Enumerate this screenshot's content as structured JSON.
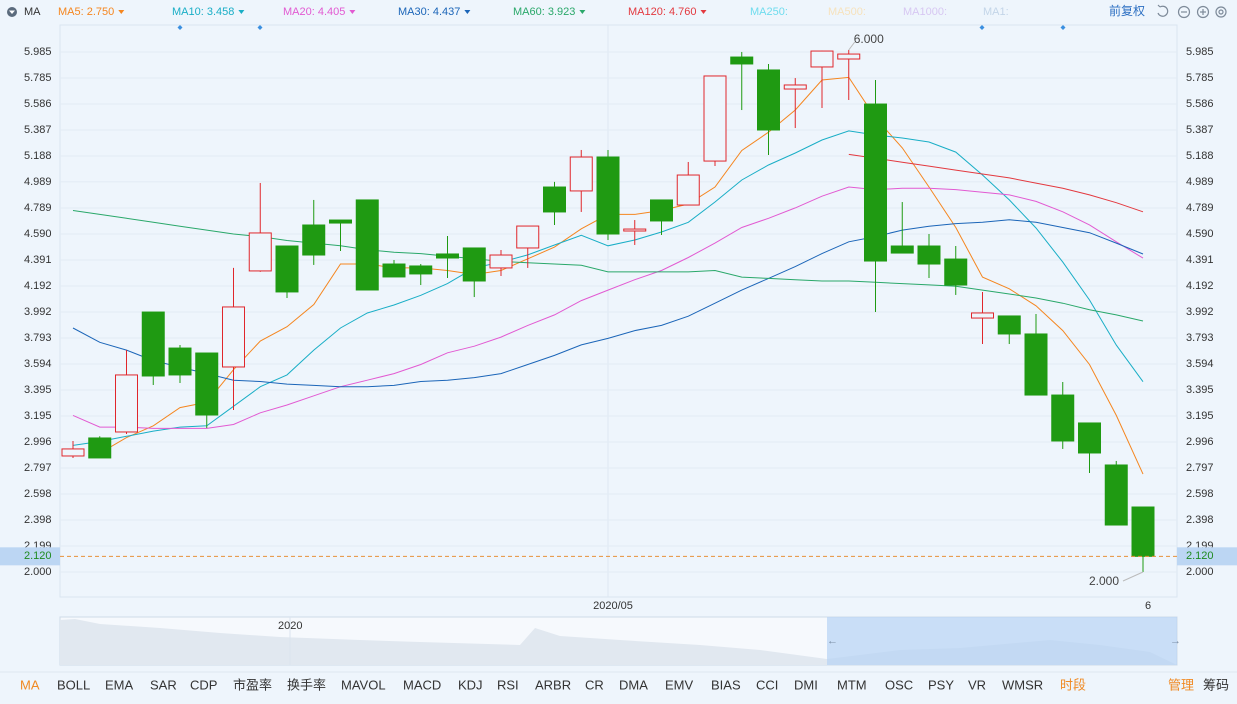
{
  "header": {
    "indicator": "MA",
    "adjust": "前复权"
  },
  "chart_data": {
    "type": "candlestick",
    "categories": [
      null,
      null,
      null,
      null,
      null,
      null,
      null,
      null,
      null,
      null,
      null,
      null,
      null,
      null,
      null,
      null,
      null,
      null,
      null,
      null,
      "2020/05",
      null,
      null,
      null,
      null,
      null,
      null,
      null,
      null,
      null,
      null,
      null,
      null,
      null,
      null,
      null,
      null,
      null,
      null,
      null,
      "6"
    ],
    "open": [
      2.889,
      3.027,
      3.073,
      3.992,
      3.716,
      3.678,
      3.571,
      4.307,
      4.498,
      4.659,
      4.697,
      4.851,
      4.36,
      4.345,
      4.437,
      4.483,
      4.33,
      4.483,
      4.95,
      4.92,
      5.18,
      4.613,
      4.851,
      4.812,
      5.149,
      5.946,
      5.847,
      5.701,
      5.87,
      5.931,
      5.586,
      4.498,
      4.498,
      4.398,
      3.946,
      3.962,
      3.824,
      3.356,
      3.142,
      2.82,
      2.498
    ],
    "high": [
      3.004,
      3.04,
      3.7,
      3.992,
      3.739,
      3.678,
      4.33,
      4.981,
      4.498,
      4.851,
      4.697,
      4.851,
      4.391,
      4.36,
      4.575,
      4.483,
      4.467,
      4.651,
      4.989,
      5.234,
      5.234,
      4.697,
      4.851,
      5.142,
      5.801,
      5.985,
      5.893,
      5.785,
      5.995,
      6.0,
      5.77,
      4.835,
      4.59,
      4.498,
      4.146,
      3.962,
      3.977,
      3.456,
      3.142,
      2.851,
      2.498
    ],
    "low": [
      2.874,
      2.874,
      3.057,
      3.433,
      3.448,
      3.103,
      3.241,
      4.3,
      4.1,
      4.353,
      4.46,
      4.161,
      4.261,
      4.199,
      4.253,
      4.107,
      4.268,
      4.33,
      4.659,
      4.759,
      4.544,
      4.506,
      4.582,
      4.812,
      5.111,
      5.54,
      5.195,
      5.402,
      5.556,
      5.617,
      3.992,
      4.444,
      4.253,
      4.123,
      3.747,
      3.747,
      3.356,
      2.943,
      2.759,
      2.36,
      2.0
    ],
    "close": [
      2.943,
      2.874,
      3.51,
      3.502,
      3.51,
      3.203,
      4.031,
      4.598,
      4.146,
      4.429,
      4.674,
      4.161,
      4.261,
      4.284,
      4.406,
      4.23,
      4.429,
      4.651,
      4.759,
      5.18,
      4.59,
      4.628,
      4.69,
      5.042,
      5.801,
      5.893,
      5.387,
      5.732,
      5.992,
      5.969,
      4.383,
      4.444,
      4.36,
      4.199,
      3.985,
      3.824,
      3.356,
      3.004,
      2.912,
      2.36,
      2.12
    ],
    "up_color": "#e0262b",
    "down_color": "#1f9a12",
    "series": [
      {
        "name": "MA5: 2.750",
        "color": "#f5861f",
        "values": [
          null,
          2.91,
          3.03,
          3.12,
          3.26,
          3.3,
          3.55,
          3.77,
          3.88,
          4.05,
          4.36,
          4.36,
          4.33,
          4.33,
          4.31,
          4.28,
          4.31,
          4.4,
          4.49,
          4.63,
          4.74,
          4.74,
          4.77,
          4.82,
          4.95,
          5.23,
          5.37,
          5.54,
          5.77,
          5.79,
          5.48,
          5.25,
          4.95,
          4.64,
          4.26,
          4.17,
          4.04,
          3.85,
          3.59,
          3.2,
          2.75
        ]
      },
      {
        "name": "MA10: 3.458",
        "color": "#19aec6",
        "values": [
          2.97,
          3.0,
          3.04,
          3.08,
          3.11,
          3.12,
          3.27,
          3.42,
          3.51,
          3.7,
          3.87,
          3.985,
          4.046,
          4.12,
          4.21,
          4.33,
          4.375,
          4.43,
          4.506,
          4.58,
          4.5,
          4.544,
          4.605,
          4.68,
          4.835,
          5.004,
          5.119,
          5.211,
          5.31,
          5.38,
          5.349,
          5.326,
          5.295,
          5.218,
          5.042,
          4.851,
          4.636,
          4.375,
          4.084,
          3.739,
          3.458
        ]
      },
      {
        "name": "MA20: 4.405",
        "color": "#e25ad2",
        "values": [
          3.2,
          3.11,
          3.11,
          3.1,
          3.1,
          3.1,
          3.13,
          3.22,
          3.28,
          3.35,
          3.42,
          3.47,
          3.52,
          3.59,
          3.68,
          3.73,
          3.8,
          3.89,
          3.97,
          4.08,
          4.16,
          4.24,
          4.31,
          4.41,
          4.52,
          4.64,
          4.71,
          4.79,
          4.88,
          4.95,
          4.93,
          4.94,
          4.94,
          4.93,
          4.91,
          4.89,
          4.84,
          4.76,
          4.66,
          4.53,
          4.405
        ]
      },
      {
        "name": "MA30: 4.437",
        "color": "#1b65b8",
        "values": [
          3.87,
          3.76,
          3.7,
          3.62,
          3.57,
          3.52,
          3.47,
          3.46,
          3.44,
          3.43,
          3.42,
          3.42,
          3.43,
          3.46,
          3.47,
          3.49,
          3.52,
          3.59,
          3.66,
          3.74,
          3.79,
          3.85,
          3.89,
          3.96,
          4.06,
          4.16,
          4.25,
          4.34,
          4.44,
          4.53,
          4.57,
          4.62,
          4.65,
          4.67,
          4.68,
          4.7,
          4.68,
          4.64,
          4.6,
          4.52,
          4.437
        ]
      },
      {
        "name": "MA60: 3.923",
        "color": "#2aa86a",
        "values": [
          4.77,
          4.74,
          4.71,
          4.68,
          4.65,
          4.62,
          4.59,
          4.57,
          4.54,
          4.52,
          4.5,
          4.47,
          4.45,
          4.44,
          4.42,
          4.4,
          4.38,
          4.37,
          4.36,
          4.35,
          4.3,
          4.3,
          4.3,
          4.3,
          4.31,
          4.26,
          4.25,
          4.24,
          4.23,
          4.23,
          4.22,
          4.21,
          4.2,
          4.19,
          4.16,
          4.13,
          4.1,
          4.06,
          4.01,
          3.97,
          3.923
        ]
      },
      {
        "name": "MA120: 4.760",
        "color": "#e3393f",
        "values": [
          null,
          null,
          null,
          null,
          null,
          null,
          null,
          null,
          null,
          null,
          null,
          null,
          null,
          null,
          null,
          null,
          null,
          null,
          null,
          null,
          null,
          null,
          null,
          null,
          null,
          null,
          null,
          null,
          null,
          5.2,
          5.17,
          5.14,
          5.11,
          5.08,
          5.05,
          5.02,
          4.98,
          4.94,
          4.89,
          4.83,
          4.76
        ]
      }
    ],
    "inactive_legend": [
      {
        "name": "MA250:",
        "color": "#6fdcee"
      },
      {
        "name": "MA500:",
        "color": "#f6e2bd"
      },
      {
        "name": "MA1000:",
        "color": "#d7c7f2"
      },
      {
        "name": "MA1:",
        "color": "#c3d5e8"
      }
    ],
    "ylim": [
      1.8084,
      6.1916
    ],
    "yticks": [
      {
        "value": 2,
        "label": "2.000"
      },
      2.199,
      2.398,
      2.598,
      2.797,
      2.996,
      3.195,
      3.395,
      3.594,
      3.793,
      3.992,
      4.192,
      4.391,
      {
        "value": 4.59,
        "label": "4.590"
      },
      4.789,
      4.989,
      5.188,
      5.387,
      5.586,
      5.785,
      5.985
    ],
    "grid": true,
    "price_line": {
      "value": 2.12,
      "label": "2.120"
    },
    "annotations": [
      {
        "value": 6.0,
        "label": "6.000",
        "at": "high"
      },
      {
        "value": 2.0,
        "label": "2.000",
        "at": "low"
      }
    ]
  },
  "navigator": {
    "label": "2020"
  },
  "tabs": [
    "MA",
    "BOLL",
    "EMA",
    "SAR",
    "CDP",
    "市盈率",
    "换手率",
    "MAVOL",
    "MACD",
    "KDJ",
    "RSI",
    "ARBR",
    "CR",
    "DMA",
    "EMV",
    "BIAS",
    "CCI",
    "DMI",
    "MTM",
    "OSC",
    "PSY",
    "VR",
    "WMSR",
    "时段"
  ],
  "tools": [
    "管理",
    "筹码"
  ]
}
